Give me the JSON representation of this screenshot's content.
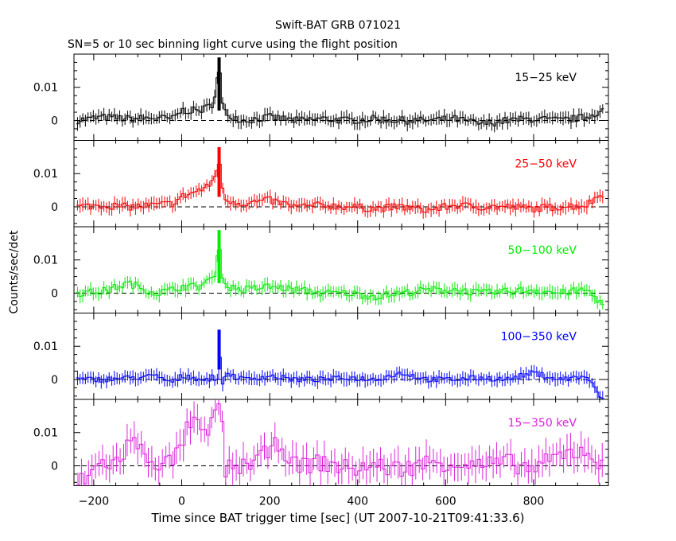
{
  "chart_data": {
    "type": "line",
    "title": "Swift-BAT GRB 071021",
    "subtitle": "SN=5 or 10 sec binning light curve using the flight position",
    "xlabel": "Time since BAT trigger time [sec] (UT 2007-10-21T09:41:33.6)",
    "ylabel": "Counts/sec/det",
    "xlim": [
      -245,
      970
    ],
    "x_ticks": [
      -200,
      0,
      200,
      400,
      600,
      800
    ],
    "y_ticks": [
      0,
      0.01
    ],
    "y_tick_labels": [
      "0",
      "0.01"
    ],
    "grid": false,
    "panels": [
      {
        "name": "15-25 keV",
        "label": "15−25 keV",
        "color": "#000000",
        "ylim": [
          -0.006,
          0.02
        ],
        "x": [
          -240,
          -180,
          -120,
          -60,
          -20,
          0,
          20,
          40,
          60,
          70,
          80,
          85,
          90,
          100,
          140,
          200,
          260,
          320,
          380,
          440,
          500,
          560,
          620,
          680,
          740,
          800,
          860,
          920,
          955
        ],
        "y": [
          0,
          0.001,
          0.0005,
          0.0008,
          0.0005,
          0.003,
          0.003,
          0.003,
          0.004,
          0.005,
          0.011,
          0.019,
          0.006,
          0.002,
          0,
          0.001,
          0,
          0.0005,
          0,
          0.0005,
          0,
          0,
          0.0005,
          -0.001,
          0,
          0.0005,
          0,
          0.001,
          0.003
        ]
      },
      {
        "name": "25-50 keV",
        "label": "25−50 keV",
        "color": "#ff0000",
        "ylim": [
          -0.006,
          0.02
        ],
        "x": [
          -240,
          -180,
          -120,
          -60,
          -20,
          0,
          20,
          40,
          60,
          70,
          80,
          85,
          90,
          100,
          140,
          200,
          260,
          320,
          380,
          440,
          500,
          560,
          620,
          680,
          740,
          800,
          860,
          920,
          955
        ],
        "y": [
          0,
          0.0005,
          0,
          0.0005,
          0.001,
          0.003,
          0.004,
          0.005,
          0.006,
          0.008,
          0.01,
          0.018,
          0.006,
          0.002,
          0.001,
          0.002,
          0,
          0.0005,
          0,
          -0.0005,
          0,
          -0.001,
          0.0005,
          0,
          0,
          -0.0005,
          0,
          0.0005,
          0.004
        ]
      },
      {
        "name": "50-100 keV",
        "label": "50−100 keV",
        "color": "#00ee00",
        "ylim": [
          -0.006,
          0.02
        ],
        "x": [
          -240,
          -180,
          -120,
          -60,
          -20,
          0,
          20,
          40,
          60,
          70,
          80,
          85,
          90,
          100,
          140,
          200,
          260,
          320,
          380,
          440,
          500,
          560,
          620,
          680,
          740,
          800,
          860,
          920,
          955
        ],
        "y": [
          0,
          0.0005,
          0.003,
          0,
          0.001,
          0.002,
          0.002,
          0.002,
          0.004,
          0.004,
          0.008,
          0.019,
          0.007,
          0.002,
          0.001,
          0.002,
          0.001,
          0,
          0,
          -0.001,
          0,
          0.001,
          0.001,
          0,
          0.0005,
          0.001,
          0,
          0.001,
          -0.003
        ]
      },
      {
        "name": "100-350 keV",
        "label": "100−350 keV",
        "color": "#0000ff",
        "ylim": [
          -0.006,
          0.02
        ],
        "x": [
          -240,
          -180,
          -120,
          -60,
          -20,
          0,
          20,
          40,
          60,
          70,
          80,
          85,
          90,
          100,
          140,
          200,
          260,
          320,
          380,
          440,
          500,
          560,
          620,
          680,
          740,
          800,
          860,
          920,
          955
        ],
        "y": [
          0,
          0,
          0.0005,
          0.001,
          -0.001,
          0.001,
          0.001,
          0,
          0,
          0.001,
          -0.003,
          0.015,
          -0.004,
          0.002,
          0,
          0.001,
          0,
          0,
          0.0005,
          0,
          0.002,
          0,
          0,
          0.0005,
          0,
          0.002,
          0,
          0.001,
          -0.006
        ]
      },
      {
        "name": "15-350 keV",
        "label": "15−350 keV",
        "color": "#dd22dd",
        "ylim": [
          -0.006,
          0.02
        ],
        "x": [
          -240,
          -180,
          -140,
          -120,
          -60,
          -20,
          0,
          20,
          40,
          60,
          70,
          80,
          90,
          100,
          140,
          200,
          220,
          260,
          320,
          380,
          440,
          500,
          560,
          620,
          680,
          740,
          800,
          860,
          920,
          955
        ],
        "y": [
          -0.006,
          0.001,
          0.001,
          0.008,
          0.001,
          0.001,
          0.007,
          0.013,
          0.012,
          0.007,
          0.015,
          0.02,
          0.014,
          -0.001,
          0,
          0.004,
          0.007,
          0,
          0.001,
          -0.001,
          0,
          -0.001,
          0.001,
          0.001,
          0,
          0.001,
          -0.001,
          0.003,
          0.005,
          0
        ]
      }
    ]
  }
}
